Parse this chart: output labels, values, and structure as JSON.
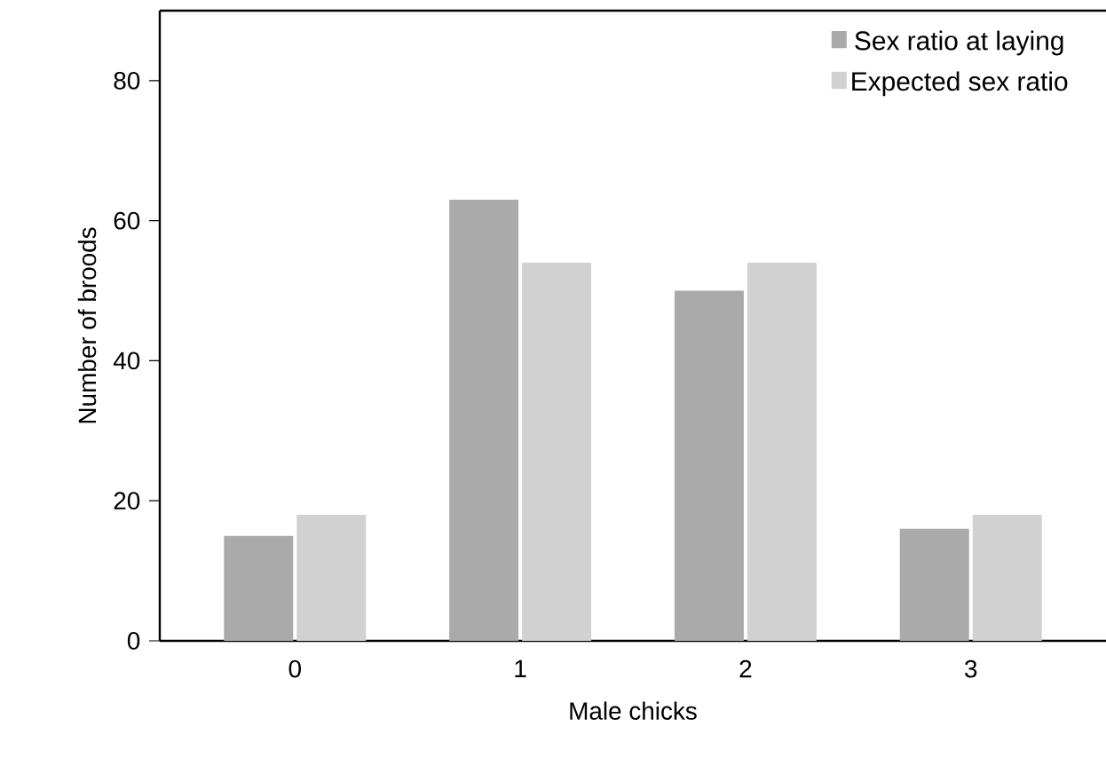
{
  "chart_data": {
    "type": "bar",
    "xlabel": "Male chicks",
    "ylabel": "Number of broods",
    "categories": [
      "0",
      "1",
      "2",
      "3"
    ],
    "series": [
      {
        "name": "Sex ratio at laying",
        "color": "#aaaaaa",
        "values": [
          15,
          63,
          50,
          16
        ]
      },
      {
        "name": "Expected sex ratio",
        "color": "#d0d1d0",
        "values": [
          18,
          54,
          54,
          18
        ]
      }
    ],
    "ylim": [
      0,
      90
    ],
    "yticks": [
      0,
      20,
      40,
      60,
      80
    ],
    "grid": false,
    "legend": "top right"
  }
}
